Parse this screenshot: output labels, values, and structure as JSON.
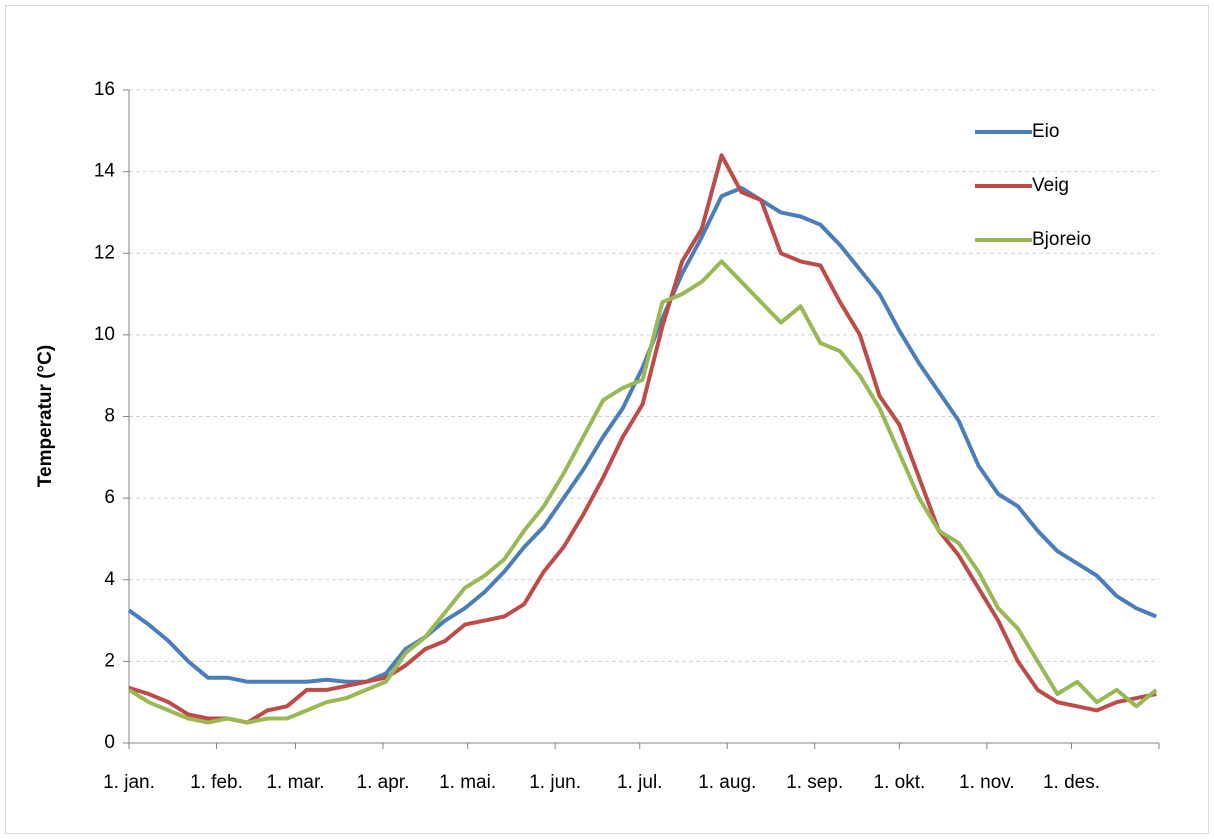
{
  "chart_data": {
    "type": "line",
    "ylabel": "Temperatur (°C)",
    "x": [
      0,
      7,
      14,
      21,
      28,
      35,
      42,
      49,
      56,
      63,
      70,
      77,
      84,
      91,
      98,
      105,
      112,
      119,
      126,
      133,
      140,
      147,
      154,
      161,
      168,
      175,
      182,
      189,
      196,
      203,
      210,
      217,
      224,
      231,
      238,
      245,
      252,
      259,
      266,
      273,
      280,
      287,
      294,
      301,
      308,
      315,
      322,
      329,
      336,
      343,
      350,
      357,
      364
    ],
    "xlim": [
      0,
      365
    ],
    "xticks": [
      {
        "value": 0,
        "label": "1. jan."
      },
      {
        "value": 31,
        "label": "1. feb."
      },
      {
        "value": 59,
        "label": "1. mar."
      },
      {
        "value": 90,
        "label": "1. apr."
      },
      {
        "value": 120,
        "label": "1. mai."
      },
      {
        "value": 151,
        "label": "1. jun."
      },
      {
        "value": 181,
        "label": "1. jul."
      },
      {
        "value": 212,
        "label": "1. aug."
      },
      {
        "value": 243,
        "label": "1. sep."
      },
      {
        "value": 273,
        "label": "1. okt."
      },
      {
        "value": 304,
        "label": "1. nov."
      },
      {
        "value": 334,
        "label": "1. des."
      }
    ],
    "ylim": [
      0,
      16
    ],
    "yticks": [
      0,
      2,
      4,
      6,
      8,
      10,
      12,
      14,
      16
    ],
    "grid": true,
    "legend": "upper-right",
    "series": [
      {
        "name": "Eio",
        "color": "#4a7ebb",
        "values": [
          3.25,
          2.9,
          2.5,
          2.0,
          1.6,
          1.6,
          1.5,
          1.5,
          1.5,
          1.5,
          1.55,
          1.5,
          1.5,
          1.7,
          2.3,
          2.6,
          3.0,
          3.3,
          3.7,
          4.2,
          4.8,
          5.3,
          6.0,
          6.7,
          7.5,
          8.2,
          9.2,
          10.4,
          11.5,
          12.4,
          13.4,
          13.6,
          13.3,
          13.0,
          12.9,
          12.7,
          12.2,
          11.6,
          11.0,
          10.1,
          9.3,
          8.6,
          7.9,
          6.8,
          6.1,
          5.8,
          5.2,
          4.7,
          4.4,
          4.1,
          3.6,
          3.3,
          3.1
        ]
      },
      {
        "name": "Veig",
        "color": "#be4b48",
        "values": [
          1.35,
          1.2,
          1.0,
          0.7,
          0.6,
          0.6,
          0.5,
          0.8,
          0.9,
          1.3,
          1.3,
          1.4,
          1.5,
          1.6,
          1.9,
          2.3,
          2.5,
          2.9,
          3.0,
          3.1,
          3.4,
          4.2,
          4.8,
          5.6,
          6.5,
          7.5,
          8.3,
          10.2,
          11.8,
          12.6,
          14.4,
          13.5,
          13.3,
          12.0,
          11.8,
          11.7,
          10.8,
          10.0,
          8.5,
          7.8,
          6.5,
          5.2,
          4.6,
          3.8,
          3.0,
          2.0,
          1.3,
          1.0,
          0.9,
          0.8,
          1.0,
          1.1,
          1.2
        ]
      },
      {
        "name": "Bjoreio",
        "color": "#98b954",
        "values": [
          1.3,
          1.0,
          0.8,
          0.6,
          0.5,
          0.6,
          0.5,
          0.6,
          0.6,
          0.8,
          1.0,
          1.1,
          1.3,
          1.5,
          2.2,
          2.6,
          3.2,
          3.8,
          4.1,
          4.5,
          5.2,
          5.8,
          6.6,
          7.5,
          8.4,
          8.7,
          8.9,
          10.8,
          11.0,
          11.3,
          11.8,
          11.3,
          10.8,
          10.3,
          10.7,
          9.8,
          9.6,
          9.0,
          8.2,
          7.1,
          6.0,
          5.2,
          4.9,
          4.2,
          3.3,
          2.8,
          2.0,
          1.2,
          1.5,
          1.0,
          1.3,
          0.9,
          1.3
        ]
      }
    ]
  }
}
